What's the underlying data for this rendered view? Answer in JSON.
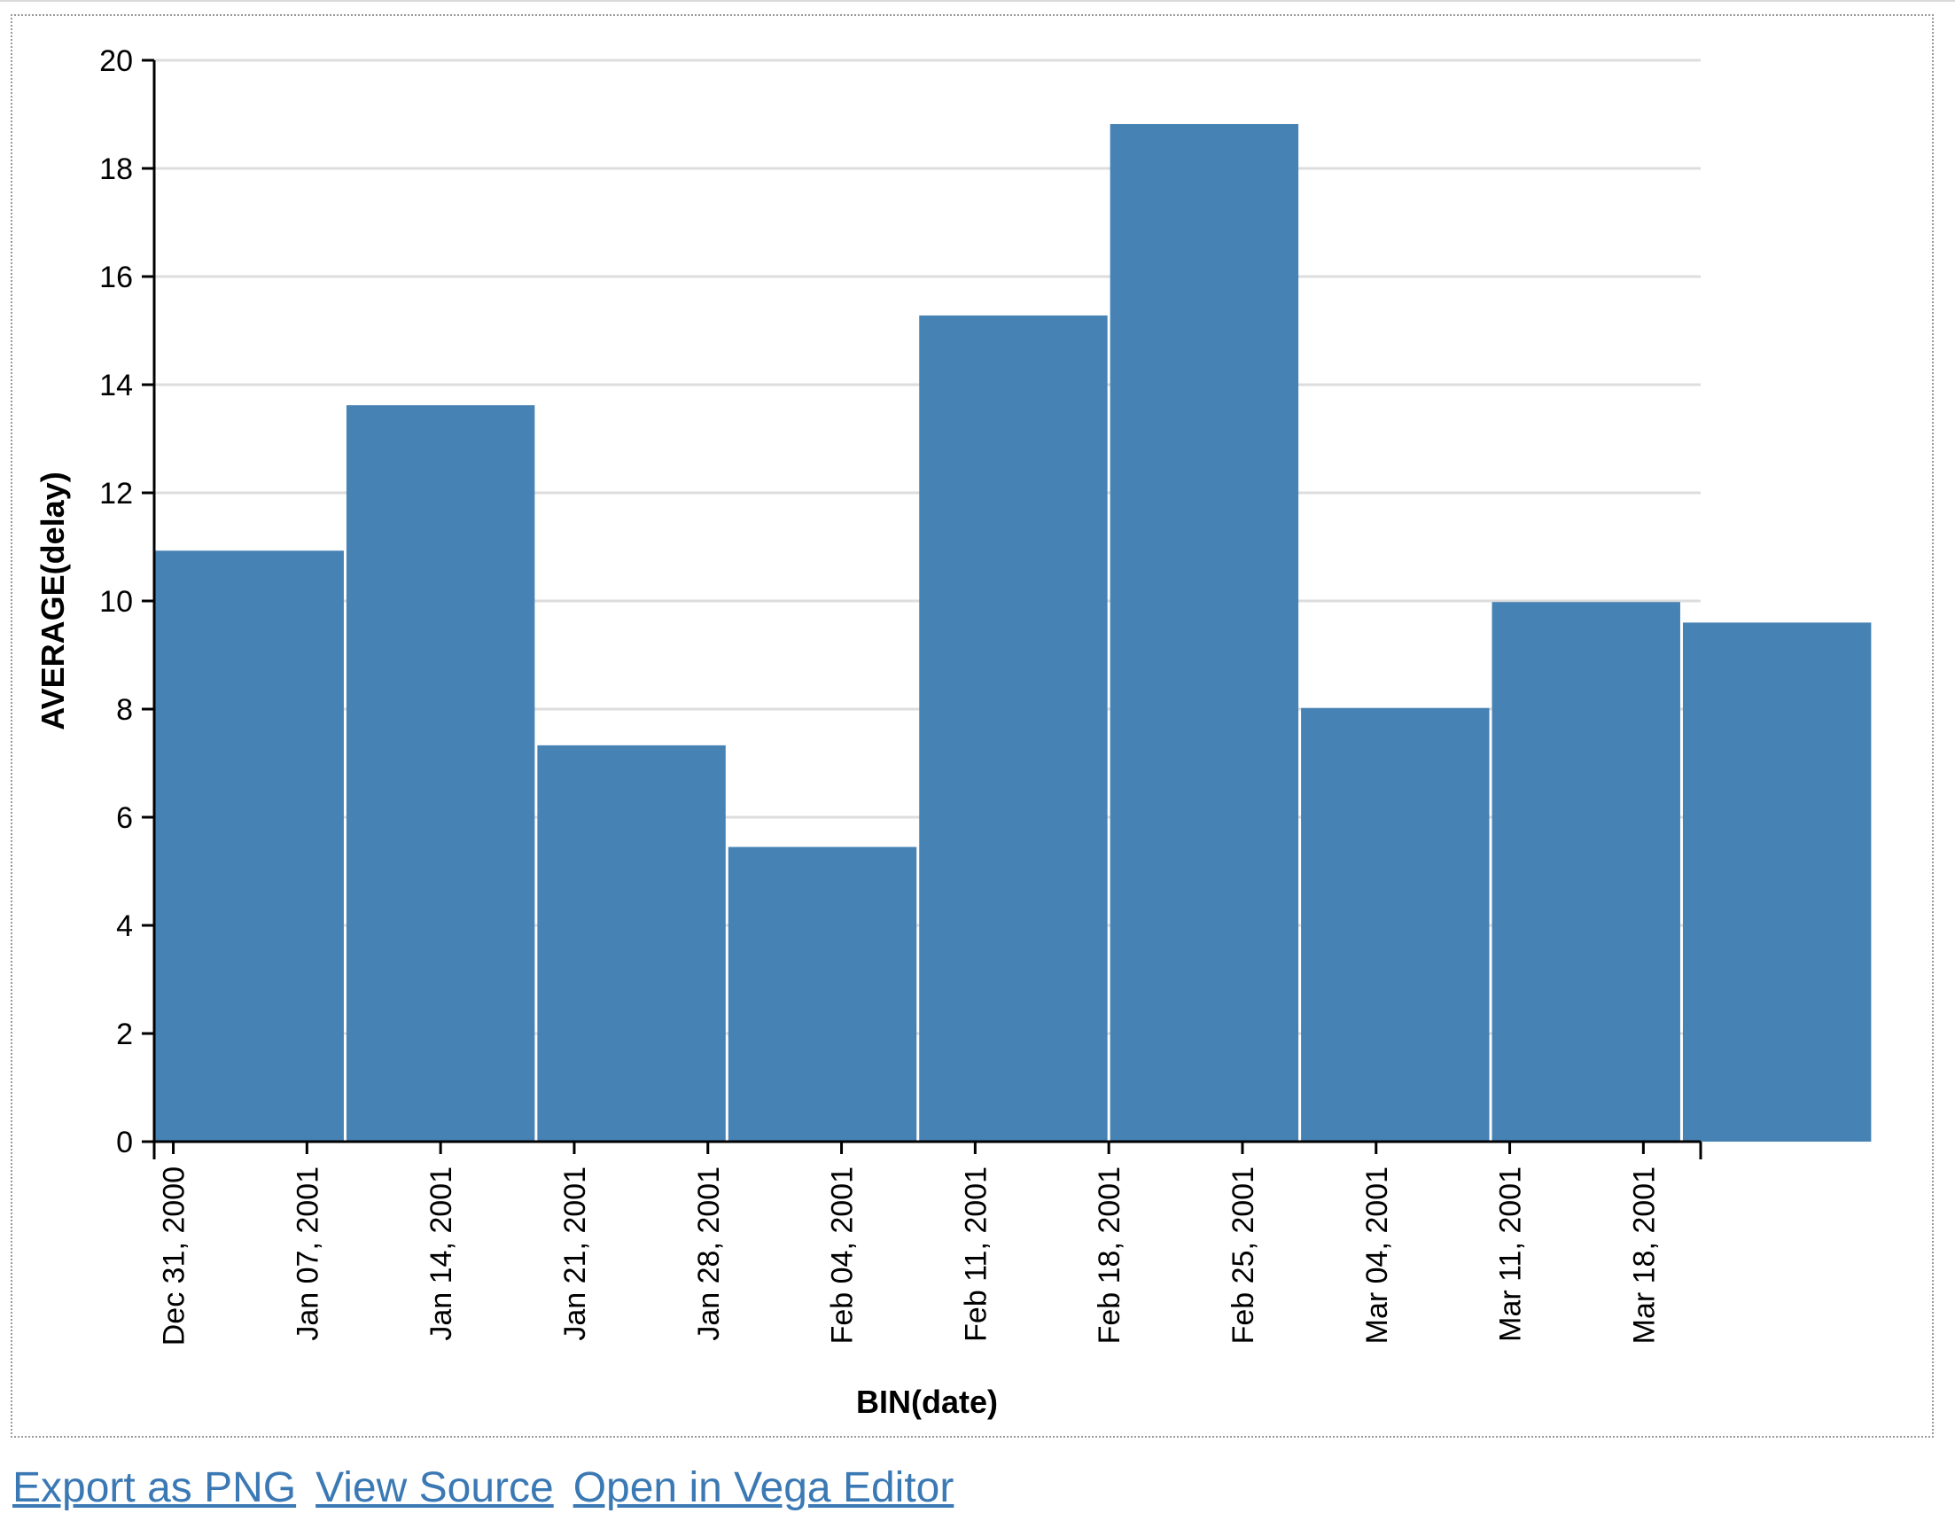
{
  "chart_data": {
    "type": "bar",
    "xlabel": "BIN(date)",
    "ylabel": "AVERAGE(delay)",
    "ylim": [
      0,
      20
    ],
    "y_ticks": [
      0,
      2,
      4,
      6,
      8,
      10,
      12,
      14,
      16,
      18,
      20
    ],
    "grid": true,
    "bar_color": "#4682b4",
    "x_ticks": [
      "Dec 31, 2000",
      "Jan 07, 2001",
      "Jan 14, 2001",
      "Jan 21, 2001",
      "Jan 28, 2001",
      "Feb 04, 2001",
      "Feb 11, 2001",
      "Feb 18, 2001",
      "Feb 25, 2001",
      "Mar 04, 2001",
      "Mar 11, 2001",
      "Mar 18, 2001"
    ],
    "x_domain": [
      "2000-12-30",
      "2001-03-21"
    ],
    "bins": [
      {
        "start": "2000-12-30",
        "end": "2001-01-09",
        "value": 10.93
      },
      {
        "start": "2001-01-09",
        "end": "2001-01-19",
        "value": 13.62
      },
      {
        "start": "2001-01-19",
        "end": "2001-01-29",
        "value": 7.33
      },
      {
        "start": "2001-01-29",
        "end": "2001-02-08",
        "value": 5.45
      },
      {
        "start": "2001-02-08",
        "end": "2001-02-18",
        "value": 15.28
      },
      {
        "start": "2001-02-18",
        "end": "2001-02-28",
        "value": 18.82
      },
      {
        "start": "2001-02-28",
        "end": "2001-03-10",
        "value": 8.02
      },
      {
        "start": "2001-03-10",
        "end": "2001-03-20",
        "value": 9.98
      },
      {
        "start": "2001-03-20",
        "end": "2001-03-30",
        "value": 9.6
      }
    ]
  },
  "actions": {
    "export_png": "Export as PNG",
    "view_source": "View Source",
    "open_vega": "Open in Vega Editor"
  },
  "colors": {
    "link": "#3b79b4",
    "grid": "#dddddd",
    "axis": "#000000"
  }
}
